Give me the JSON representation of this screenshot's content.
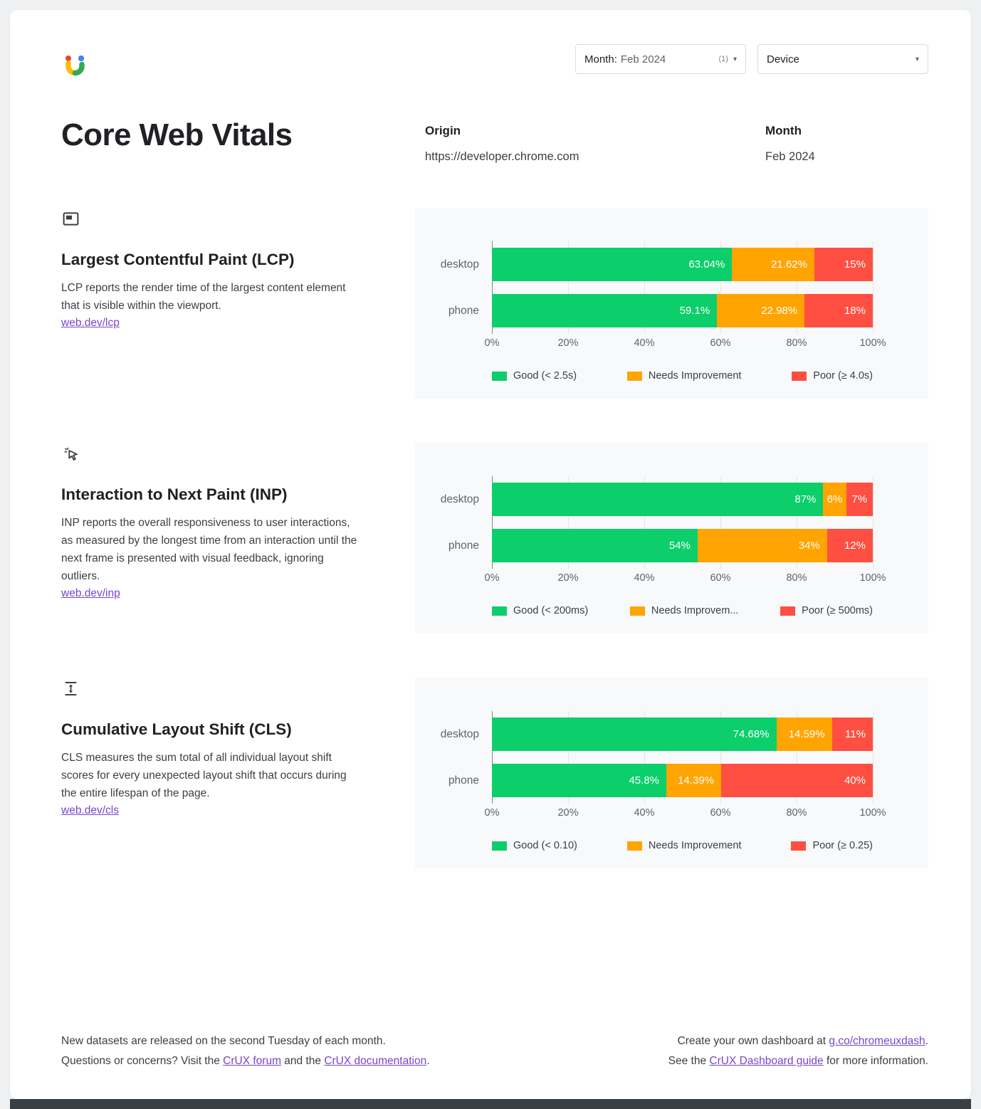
{
  "colors": {
    "good": "#0cce6b",
    "needs_improvement": "#ffa400",
    "poor": "#ff4e42",
    "series": [
      "#0cce6b",
      "#ffa400",
      "#ff4e42"
    ],
    "link": "#7846c8",
    "panel_bg": "#f8f9fa"
  },
  "icons": {
    "dropdown_arrow": "▾",
    "logo": "crux-dashboard-logo",
    "lcp": "largest-contentful-paint-icon",
    "inp": "interaction-cursor-icon",
    "cls": "layout-shift-icon"
  },
  "toolbar": {
    "month_filter": {
      "label": "Month:",
      "value": "Feb 2024",
      "count": "(1)"
    },
    "device_filter": {
      "label": "Device"
    }
  },
  "header": {
    "title": "Core Web Vitals",
    "origin_label": "Origin",
    "origin_value": "https://developer.chrome.com",
    "month_label": "Month",
    "month_value": "Feb 2024"
  },
  "sections": [
    {
      "title": "Largest Contentful Paint (LCP)",
      "description": "LCP reports the render time of the largest content element that is visible within the viewport.",
      "link": "web.dev/lcp"
    },
    {
      "title": "Interaction to Next Paint (INP)",
      "description": "INP reports the overall responsiveness to user interactions, as measured by the longest time from an interaction until the next frame is presented with visual feedback, ignoring outliers.",
      "link": "web.dev/inp"
    },
    {
      "title": "Cumulative Layout Shift (CLS)",
      "description": "CLS measures the sum total of all individual layout shift scores for every unexpected layout shift that occurs during the entire lifespan of the page.",
      "link": "web.dev/cls"
    }
  ],
  "chart_data": [
    {
      "type": "bar",
      "orientation": "horizontal",
      "stacked": true,
      "title": "Largest Contentful Paint (LCP)",
      "categories": [
        "desktop",
        "phone"
      ],
      "series": [
        {
          "name": "Good (< 2.5s)",
          "values": [
            63.04,
            59.1
          ],
          "labels": [
            "63.04%",
            "59.1%"
          ]
        },
        {
          "name": "Needs Improvement",
          "values": [
            21.62,
            22.98
          ],
          "labels": [
            "21.62%",
            "22.98%"
          ]
        },
        {
          "name": "Poor (≥ 4.0s)",
          "values": [
            15.34,
            17.92
          ],
          "labels": [
            "15%",
            "18%"
          ]
        }
      ],
      "x_ticks": [
        "0%",
        "20%",
        "40%",
        "60%",
        "80%",
        "100%"
      ],
      "xlim": [
        0,
        100
      ],
      "legend_position": "bottom",
      "grid": true,
      "colors": [
        "#0cce6b",
        "#ffa400",
        "#ff4e42"
      ]
    },
    {
      "type": "bar",
      "orientation": "horizontal",
      "stacked": true,
      "title": "Interaction to Next Paint (INP)",
      "categories": [
        "desktop",
        "phone"
      ],
      "series": [
        {
          "name": "Good (< 200ms)",
          "values": [
            87,
            54
          ],
          "labels": [
            "87%",
            "54%"
          ]
        },
        {
          "name": "Needs Improvem...",
          "values": [
            6,
            34
          ],
          "labels": [
            "6%",
            "34%"
          ]
        },
        {
          "name": "Poor (≥ 500ms)",
          "values": [
            7,
            12
          ],
          "labels": [
            "7%",
            "12%"
          ]
        }
      ],
      "x_ticks": [
        "0%",
        "20%",
        "40%",
        "60%",
        "80%",
        "100%"
      ],
      "xlim": [
        0,
        100
      ],
      "legend_position": "bottom",
      "grid": true,
      "colors": [
        "#0cce6b",
        "#ffa400",
        "#ff4e42"
      ]
    },
    {
      "type": "bar",
      "orientation": "horizontal",
      "stacked": true,
      "title": "Cumulative Layout Shift (CLS)",
      "categories": [
        "desktop",
        "phone"
      ],
      "series": [
        {
          "name": "Good (< 0.10)",
          "values": [
            74.68,
            45.8
          ],
          "labels": [
            "74.68%",
            "45.8%"
          ]
        },
        {
          "name": "Needs Improvement",
          "values": [
            14.59,
            14.39
          ],
          "labels": [
            "14.59%",
            "14.39%"
          ]
        },
        {
          "name": "Poor (≥ 0.25)",
          "values": [
            10.73,
            39.81
          ],
          "labels": [
            "11%",
            "40%"
          ]
        }
      ],
      "x_ticks": [
        "0%",
        "20%",
        "40%",
        "60%",
        "80%",
        "100%"
      ],
      "xlim": [
        0,
        100
      ],
      "legend_position": "bottom",
      "grid": true,
      "colors": [
        "#0cce6b",
        "#ffa400",
        "#ff4e42"
      ]
    }
  ],
  "footer": {
    "left_line1": "New datasets are released on the second Tuesday of each month.",
    "left_line2": [
      {
        "t": "Questions or concerns? Visit the "
      },
      {
        "t": "CrUX forum",
        "link": true,
        "name": "crux-forum-link"
      },
      {
        "t": " and the "
      },
      {
        "t": "CrUX documentation",
        "link": true,
        "name": "crux-documentation-link"
      },
      {
        "t": "."
      }
    ],
    "right_line1": [
      {
        "t": "Create your own dashboard at "
      },
      {
        "t": "g.co/chromeuxdash",
        "link": true,
        "name": "chromeuxdash-link"
      },
      {
        "t": "."
      }
    ],
    "right_line2": [
      {
        "t": "See the "
      },
      {
        "t": "CrUX Dashboard guide",
        "link": true,
        "name": "crux-dashboard-guide-link"
      },
      {
        "t": " for more information."
      }
    ]
  }
}
